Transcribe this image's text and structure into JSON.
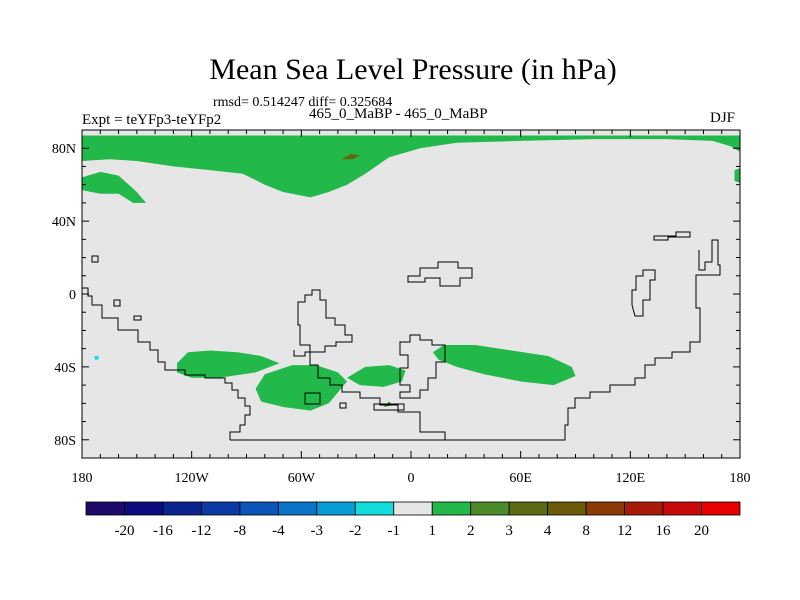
{
  "chart_data": {
    "type": "heatmap",
    "title": "Mean Sea Level Pressure (in hPa)",
    "stats_line": "rmsd= 0.514247 diff= 0.325684",
    "experiment_label": "Expt = teYFp3-teYFp2",
    "period_label": "465_0_MaBP - 465_0_MaBP",
    "season_label": "DJF",
    "x_axis": {
      "range": [
        -180,
        180
      ],
      "ticks": [
        {
          "value": -180,
          "label": "180"
        },
        {
          "value": -120,
          "label": "120W"
        },
        {
          "value": -60,
          "label": "60W"
        },
        {
          "value": 0,
          "label": "0"
        },
        {
          "value": 60,
          "label": "60E"
        },
        {
          "value": 120,
          "label": "120E"
        },
        {
          "value": 180,
          "label": "180"
        }
      ]
    },
    "y_axis": {
      "range": [
        -90,
        90
      ],
      "ticks": [
        {
          "value": 80,
          "label": "80N"
        },
        {
          "value": 40,
          "label": "40N"
        },
        {
          "value": 0,
          "label": "0"
        },
        {
          "value": -40,
          "label": "40S"
        },
        {
          "value": -80,
          "label": "80S"
        }
      ]
    },
    "colorbar": {
      "labels": [
        "-20",
        "-16",
        "-12",
        "-8",
        "-4",
        "-3",
        "-2",
        "-1",
        "1",
        "2",
        "3",
        "4",
        "8",
        "12",
        "16",
        "20"
      ],
      "colors": [
        "#1d0a6b",
        "#0b0b80",
        "#0a2490",
        "#0b3aa4",
        "#0b55b8",
        "#0a74c8",
        "#0a9cd6",
        "#12dcdc",
        "#e6e6e6",
        "#22b84a",
        "#4c8a2a",
        "#5c6a14",
        "#6a5a0a",
        "#8c3a08",
        "#a81a0a",
        "#c80a0a",
        "#e60000"
      ]
    },
    "background_value_range": "-1 to 1",
    "background_color": "#e6e6e6",
    "regions": [
      {
        "name": "north-polar-band",
        "bin": "1 to 2",
        "color": "#22b84a",
        "points": [
          [
            -180,
            87
          ],
          [
            -180,
            73
          ],
          [
            -165,
            74
          ],
          [
            -150,
            73
          ],
          [
            -130,
            70
          ],
          [
            -110,
            68
          ],
          [
            -92,
            66
          ],
          [
            -80,
            60
          ],
          [
            -70,
            56
          ],
          [
            -55,
            53
          ],
          [
            -45,
            56
          ],
          [
            -35,
            60
          ],
          [
            -25,
            66
          ],
          [
            -12,
            75
          ],
          [
            5,
            80
          ],
          [
            25,
            83
          ],
          [
            60,
            84
          ],
          [
            100,
            85
          ],
          [
            140,
            85
          ],
          [
            165,
            84
          ],
          [
            175,
            81
          ],
          [
            180,
            78
          ],
          [
            180,
            87
          ]
        ]
      },
      {
        "name": "north-west-patch",
        "bin": "1 to 2",
        "color": "#22b84a",
        "points": [
          [
            -180,
            64
          ],
          [
            -170,
            67
          ],
          [
            -160,
            65
          ],
          [
            -150,
            56
          ],
          [
            -145,
            50
          ],
          [
            -152,
            50
          ],
          [
            -160,
            55
          ],
          [
            -170,
            55
          ],
          [
            -180,
            57
          ]
        ]
      },
      {
        "name": "east-edge-patch",
        "bin": "1 to 2",
        "color": "#22b84a",
        "points": [
          [
            177,
            68
          ],
          [
            180,
            69
          ],
          [
            180,
            61
          ],
          [
            177,
            62
          ]
        ]
      },
      {
        "name": "south-america-west-patch",
        "bin": "1 to 2",
        "color": "#22b84a",
        "points": [
          [
            -128,
            -38
          ],
          [
            -122,
            -32
          ],
          [
            -110,
            -31
          ],
          [
            -95,
            -32
          ],
          [
            -82,
            -34
          ],
          [
            -72,
            -38
          ],
          [
            -85,
            -43
          ],
          [
            -105,
            -46
          ],
          [
            -120,
            -46
          ],
          [
            -128,
            -43
          ]
        ]
      },
      {
        "name": "south-atlantic-west-patch",
        "bin": "1 to 2",
        "color": "#22b84a",
        "points": [
          [
            -85,
            -52
          ],
          [
            -80,
            -44
          ],
          [
            -65,
            -39
          ],
          [
            -52,
            -39
          ],
          [
            -40,
            -43
          ],
          [
            -35,
            -48
          ],
          [
            -40,
            -54
          ],
          [
            -45,
            -60
          ],
          [
            -55,
            -64
          ],
          [
            -70,
            -62
          ],
          [
            -82,
            -59
          ]
        ]
      },
      {
        "name": "south-atlantic-mid-patch",
        "bin": "1 to 2",
        "color": "#22b84a",
        "points": [
          [
            -35,
            -46
          ],
          [
            -25,
            -40
          ],
          [
            -12,
            -39
          ],
          [
            -3,
            -42
          ],
          [
            -5,
            -48
          ],
          [
            -15,
            -51
          ],
          [
            -28,
            -50
          ]
        ]
      },
      {
        "name": "indian-ocean-patch",
        "bin": "1 to 2",
        "color": "#22b84a",
        "points": [
          [
            18,
            -28
          ],
          [
            35,
            -28
          ],
          [
            55,
            -31
          ],
          [
            75,
            -34
          ],
          [
            88,
            -40
          ],
          [
            90,
            -45
          ],
          [
            78,
            -50
          ],
          [
            60,
            -48
          ],
          [
            40,
            -44
          ],
          [
            25,
            -40
          ],
          [
            15,
            -36
          ],
          [
            12,
            -32
          ]
        ]
      },
      {
        "name": "north-brown-blob",
        "bin": "3 to 4",
        "color": "#5c6a14",
        "points": [
          [
            -38,
            74
          ],
          [
            -33,
            77
          ],
          [
            -28,
            76
          ],
          [
            -32,
            74
          ]
        ]
      },
      {
        "name": "south-brown-blob",
        "bin": "2 to 3",
        "color": "#4c8a2a",
        "points": [
          [
            -15,
            -62
          ],
          [
            -12,
            -59
          ],
          [
            -10,
            -61
          ]
        ]
      },
      {
        "name": "cyan-speck",
        "bin": "-2 to -1",
        "color": "#12dcdc",
        "points": [
          [
            -173,
            -34
          ],
          [
            -171,
            -34
          ],
          [
            -171,
            -36
          ],
          [
            -173,
            -36
          ]
        ]
      }
    ]
  }
}
